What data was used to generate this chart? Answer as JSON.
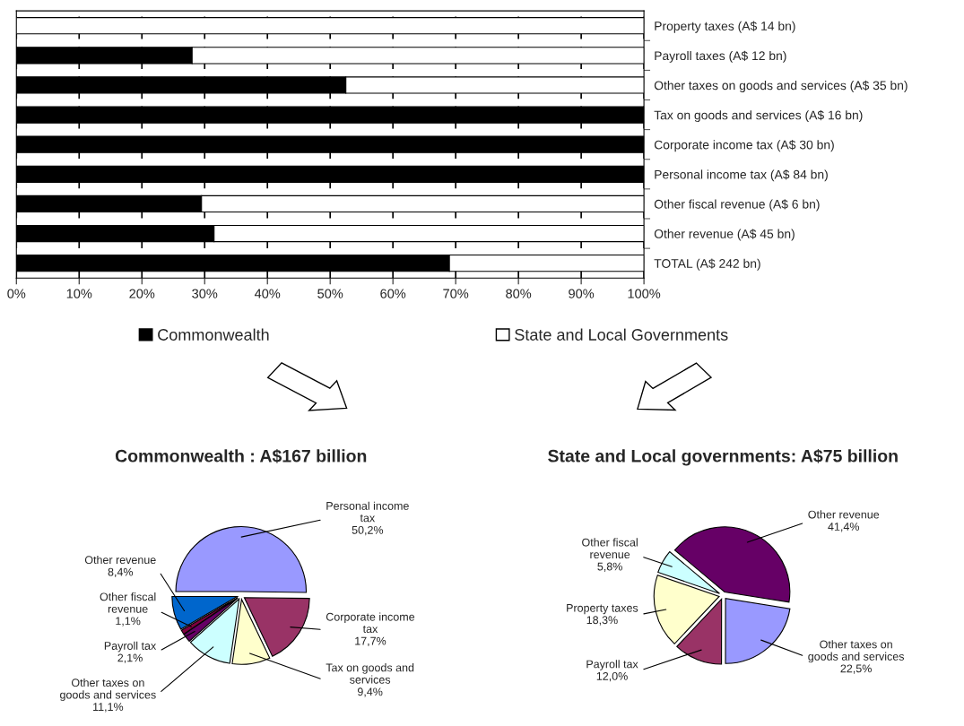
{
  "chart_data": [
    {
      "type": "bar",
      "orientation": "horizontal",
      "stacked": true,
      "categories": [
        "Property taxes (A$ 14 bn)",
        "Payroll taxes (A$ 12 bn)",
        "Other taxes on goods and services (A$ 35 bn)",
        "Tax on goods and services (A$ 16 bn)",
        "Corporate income tax (A$ 30 bn)",
        "Personal income tax (A$ 84 bn)",
        "Other fiscal revenue (A$ 6 bn)",
        "Other revenue (A$ 45 bn)",
        "TOTAL (A$ 242 bn)"
      ],
      "series": [
        {
          "name": "Commonwealth",
          "color": "#000000",
          "values": [
            0,
            28,
            52.5,
            100,
            100,
            100,
            29.5,
            31.5,
            69
          ]
        },
        {
          "name": "State and Local Governments",
          "color": "#ffffff",
          "values": [
            100,
            72,
            47.5,
            0,
            0,
            0,
            70.5,
            68.5,
            31
          ]
        }
      ],
      "xlim": [
        0,
        100
      ],
      "xticks": [
        {
          "value": 0,
          "label": "0%"
        },
        {
          "value": 10,
          "label": "10%"
        },
        {
          "value": 20,
          "label": "20%"
        },
        {
          "value": 30,
          "label": "30%"
        },
        {
          "value": 40,
          "label": "40%"
        },
        {
          "value": 50,
          "label": "50%"
        },
        {
          "value": 60,
          "label": "60%"
        },
        {
          "value": 70,
          "label": "70%"
        },
        {
          "value": 80,
          "label": "80%"
        },
        {
          "value": 90,
          "label": "90%"
        },
        {
          "value": 100,
          "label": "100%"
        }
      ],
      "grid": "x",
      "legend": "bottom"
    },
    {
      "type": "pie",
      "title": "Commonwealth : A$167 billion",
      "categories": [
        "Personal income tax",
        "Corporate income tax",
        "Tax on goods and services",
        "Other taxes on goods and services",
        "Payroll tax",
        "Other fiscal revenue",
        "Other revenue"
      ],
      "values": [
        50.2,
        17.7,
        9.4,
        11.1,
        2.1,
        1.1,
        8.4
      ],
      "value_labels": [
        "50,2%",
        "17,7%",
        "9,4%",
        "11,1%",
        "2,1%",
        "1,1%",
        "8,4%"
      ],
      "colors": [
        "#9999ff",
        "#993366",
        "#ffffcc",
        "#ccffff",
        "#660066",
        "#800040",
        "#0066cc"
      ]
    },
    {
      "type": "pie",
      "title": "State and Local governments: A$75 billion",
      "categories": [
        "Other revenue",
        "Other taxes on goods and services",
        "Payroll tax",
        "Property taxes",
        "Other fiscal revenue"
      ],
      "values": [
        41.4,
        22.5,
        12.0,
        18.3,
        5.8
      ],
      "value_labels": [
        "41,4%",
        "22,5%",
        "12,0%",
        "18,3%",
        "5,8%"
      ],
      "colors": [
        "#660066",
        "#9999ff",
        "#993366",
        "#ffffcc",
        "#ccffff"
      ]
    }
  ]
}
